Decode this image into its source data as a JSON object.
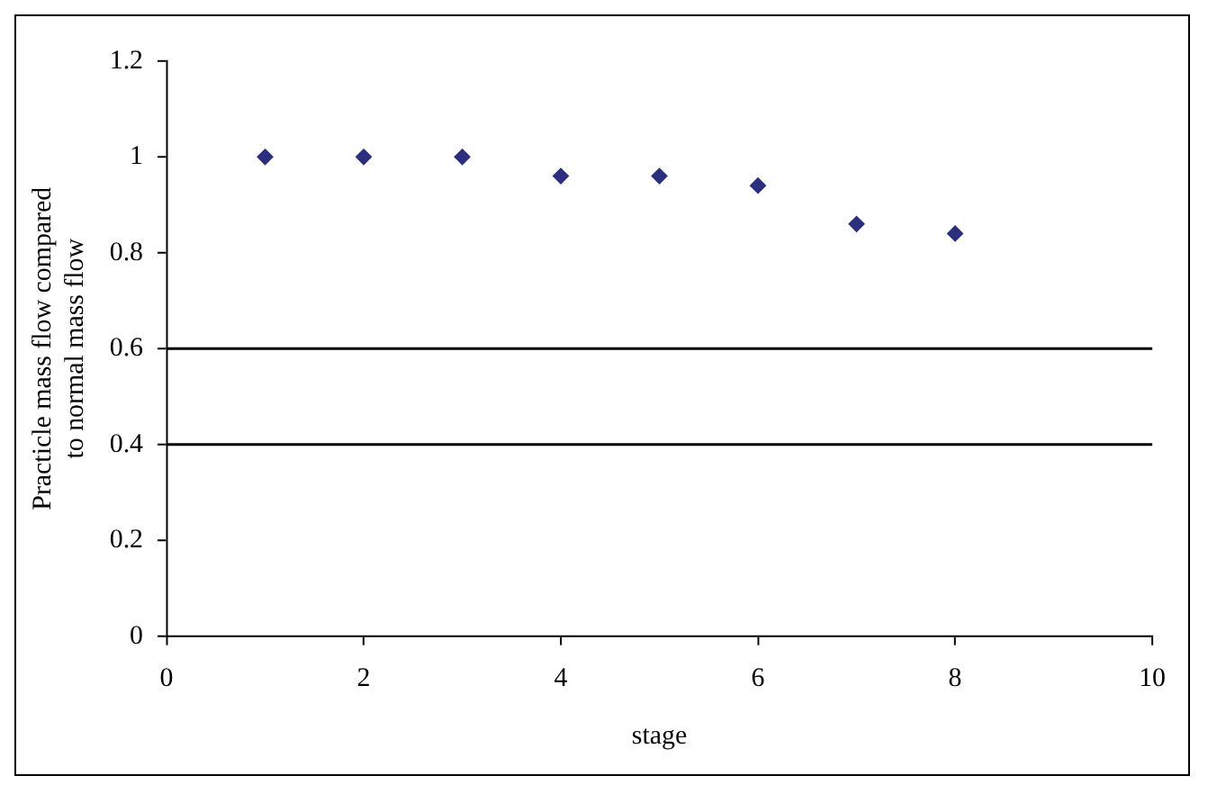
{
  "chart_data": {
    "type": "scatter",
    "xlabel": "stage",
    "ylabel": "Practicle mass flow compared to normal mass flow",
    "x": [
      1,
      2,
      3,
      4,
      5,
      6,
      7,
      8
    ],
    "values": [
      1,
      1,
      1,
      0.96,
      0.96,
      0.94,
      0.86,
      0.84
    ],
    "color": "#2b2f7e",
    "marker": "diamond",
    "xlim": [
      0,
      10
    ],
    "xticks": [
      0,
      2,
      4,
      6,
      8,
      10
    ],
    "ylim": [
      0,
      1.2
    ],
    "yticks": [
      0,
      0.2,
      0.4,
      0.6,
      0.8,
      1,
      1.2
    ],
    "ref_lines": [
      {
        "axis": "y",
        "value": 0.6,
        "color": "#000000"
      },
      {
        "axis": "y",
        "value": 0.4,
        "color": "#000000"
      }
    ],
    "grid": false,
    "legend": false
  }
}
